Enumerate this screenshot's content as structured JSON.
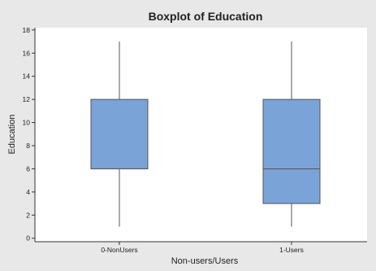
{
  "chart_data": {
    "type": "box",
    "title": "Boxplot of Education",
    "xlabel": "Non-users/Users",
    "ylabel": "Education",
    "ylim": [
      -0.3,
      18.2
    ],
    "yticks": [
      0,
      2,
      4,
      6,
      8,
      10,
      12,
      14,
      16,
      18
    ],
    "categories": [
      "0-NonUsers",
      "1-Users"
    ],
    "boxes": [
      {
        "category": "0-NonUsers",
        "min": 1,
        "q1": 6,
        "median": 6,
        "q3": 12,
        "max": 17
      },
      {
        "category": "1-Users",
        "min": 1,
        "q1": 3,
        "median": 6,
        "q3": 12,
        "max": 17
      }
    ],
    "grid": false,
    "colors": {
      "box_fill": "#7aa3d8",
      "box_stroke": "#555555",
      "whisker": "#555555",
      "plot_bg": "#ffffff",
      "outer_bg": "#e8e8e8"
    }
  }
}
